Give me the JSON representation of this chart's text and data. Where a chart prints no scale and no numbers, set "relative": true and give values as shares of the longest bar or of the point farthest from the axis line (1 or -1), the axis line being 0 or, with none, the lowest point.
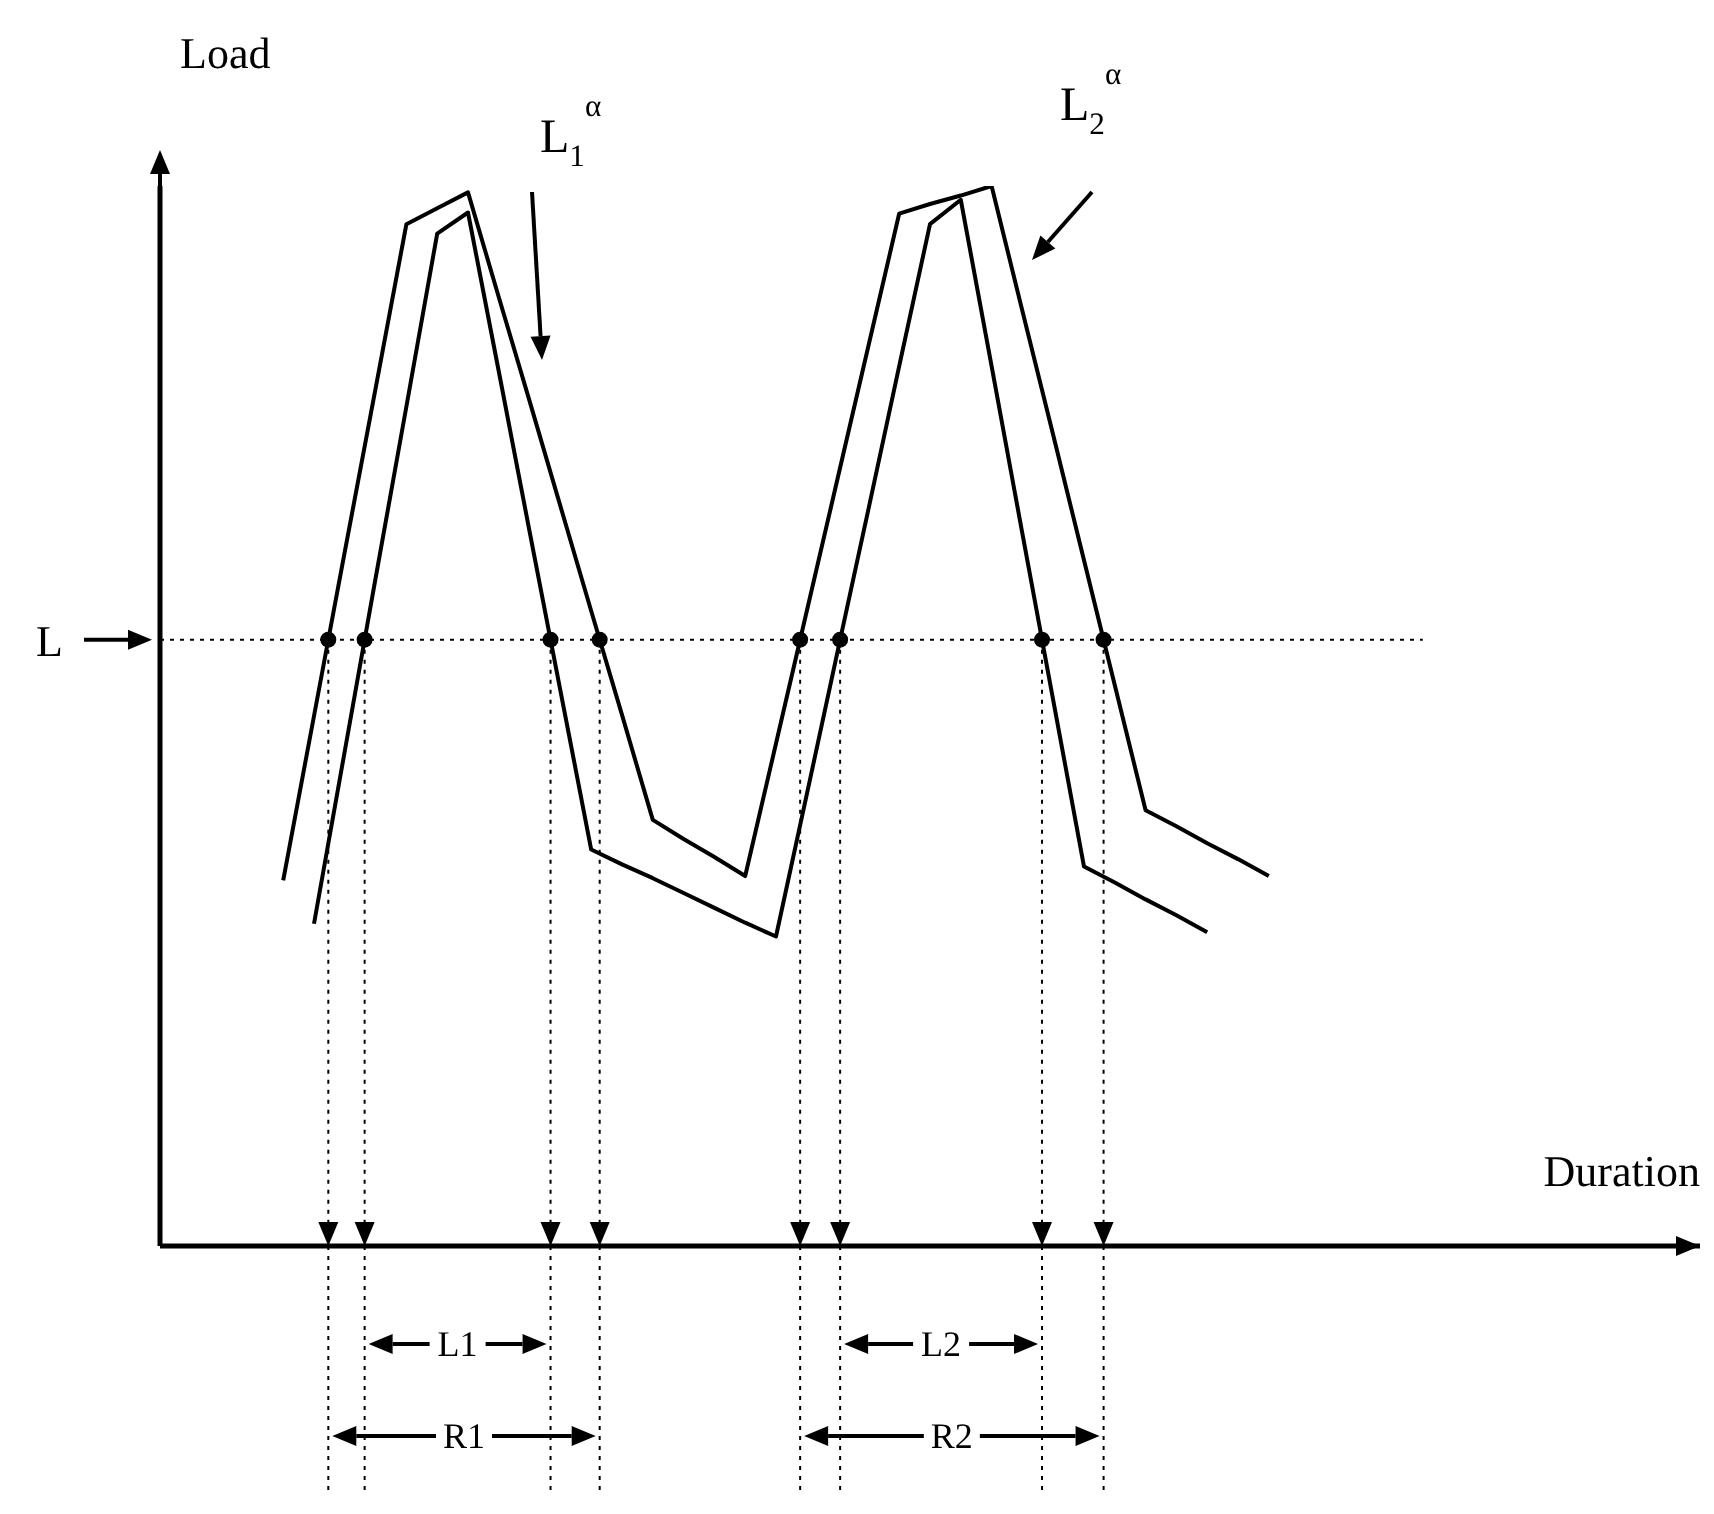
{
  "chart_data": {
    "type": "line",
    "relative": true,
    "xlabel": "Duration",
    "ylabel": "Load",
    "categories": [
      null,
      null,
      null,
      null,
      null,
      null,
      null,
      null,
      null,
      null,
      null,
      null,
      null,
      null,
      null,
      null,
      null,
      null,
      null,
      null,
      null,
      null,
      null,
      null,
      null,
      null,
      null,
      null,
      null,
      null,
      null,
      null,
      null,
      null,
      null,
      null,
      null,
      null,
      null,
      null,
      null,
      null,
      null,
      null,
      null,
      null,
      null,
      null,
      null,
      null,
      null
    ],
    "series": [
      {
        "name": "L$_{1}$$^{α}$",
        "color": "#000000",
        "values": [
          null,
          null,
          null,
          null,
          null,
          0.304,
          0.467,
          0.63,
          0.792,
          0.955,
          0.975,
          0.825,
          0.674,
          0.524,
          0.374,
          0.36,
          0.347,
          0.333,
          0.319,
          0.305,
          0.292,
          0.426,
          0.561,
          0.695,
          0.83,
          0.964,
          0.987,
          0.83,
          0.672,
          0.515,
          0.358,
          0.343,
          0.327,
          0.312,
          0.296,
          null,
          null,
          null,
          null,
          null,
          null,
          null,
          null,
          null,
          null,
          null,
          null,
          null,
          null,
          null,
          null
        ]
      },
      {
        "name": "L$_{2}$$^{α}$",
        "color": "#000000",
        "values": [
          null,
          null,
          null,
          null,
          0.345,
          0.5,
          0.655,
          0.809,
          0.964,
          0.979,
          0.994,
          0.895,
          0.797,
          0.698,
          0.599,
          0.501,
          0.402,
          0.384,
          0.367,
          0.349,
          0.474,
          0.599,
          0.724,
          0.849,
          0.974,
          0.983,
          0.991,
          1,
          0.882,
          0.765,
          0.647,
          0.529,
          0.411,
          0.396,
          0.38,
          0.365,
          0.349,
          null,
          null,
          null,
          null,
          null,
          null,
          null,
          null,
          null,
          null,
          null,
          null,
          null,
          null
        ]
      }
    ],
    "ref_lines": [
      {
        "axis": "y",
        "value": 0.572,
        "label": "L",
        "line_style": "dotted",
        "color": "#000000"
      }
    ],
    "annotations": [
      "L1",
      "R1",
      "L2",
      "R2"
    ]
  }
}
